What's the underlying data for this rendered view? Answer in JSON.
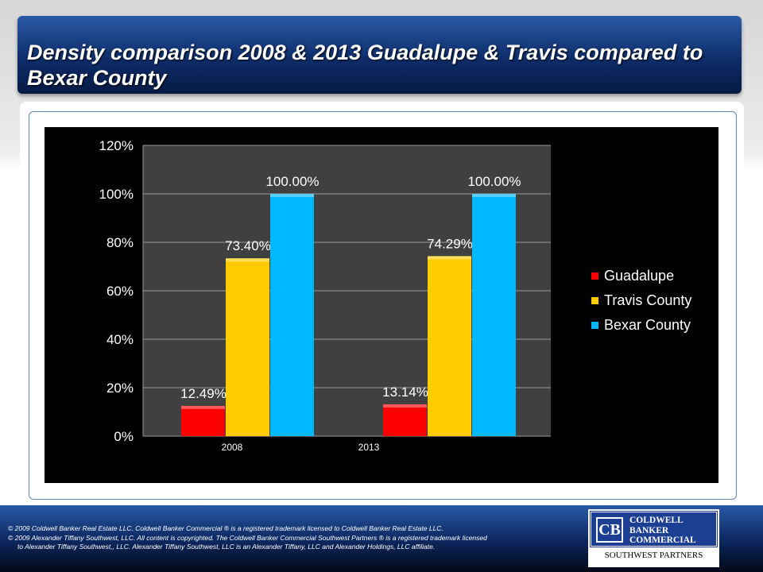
{
  "slide": {
    "title": "Density comparison 2008 & 2013 Guadalupe & Travis compared to Bexar County"
  },
  "footer": {
    "legal_lines": [
      "©  2009 Coldwell Banker Real Estate  LLC. Coldwell Banker Commercial ® is a registered trademark licensed to Coldwell Banker Real Estate LLC.",
      "© 2009  Alexander Tiffany Southwest,  LLC. All content is copyrighted. The Coldwell Banker Commercial Southwest Partners ® is a registered trademark licensed",
      "to Alexander Tiffany Southwest,, LLC.  Alexander Tiffany Southwest, LLC is an Alexander Tiffany, LLC and Alexander Holdings, LLC affiliate."
    ],
    "logo": {
      "mark": "CB",
      "name_lines": [
        "COLDWELL",
        "BANKER",
        "COMMERCIAL"
      ],
      "subtitle": "SOUTHWEST PARTNERS"
    }
  },
  "chart_data": {
    "type": "bar",
    "title": "",
    "xlabel": "",
    "ylabel": "",
    "categories": [
      "2008",
      "2013"
    ],
    "series": [
      {
        "name": "Guadalupe",
        "color": "#ff0000",
        "values": [
          12.49,
          13.14
        ],
        "labels": [
          "12.49%",
          "13.14%"
        ]
      },
      {
        "name": "Travis County",
        "color": "#ffcc00",
        "values": [
          73.4,
          74.29
        ],
        "labels": [
          "73.40%",
          "74.29%"
        ]
      },
      {
        "name": "Bexar County",
        "color": "#00b8ff",
        "values": [
          100,
          100
        ],
        "labels": [
          "100.00%",
          "100.00%"
        ]
      }
    ],
    "ylim": [
      0,
      120
    ],
    "yticks": [
      0,
      20,
      40,
      60,
      80,
      100,
      120
    ],
    "ytick_labels": [
      "0%",
      "20%",
      "40%",
      "60%",
      "80%",
      "100%",
      "120%"
    ],
    "grid": true,
    "legend": "right"
  }
}
